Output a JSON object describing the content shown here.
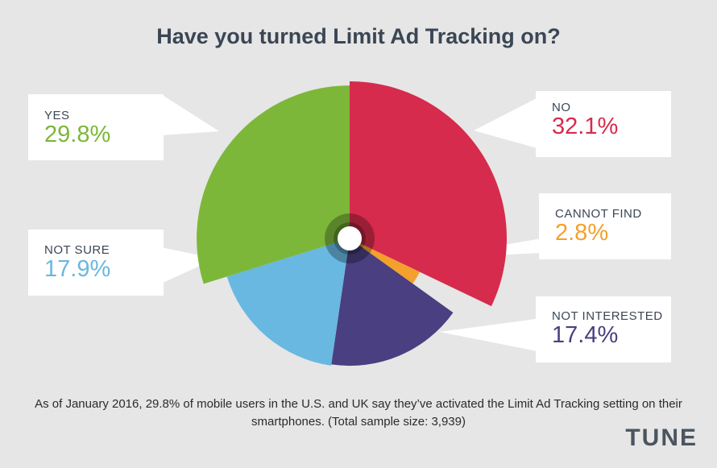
{
  "chart_data": {
    "type": "pie",
    "title": "Have you turned Limit Ad Tracking on?",
    "slices": [
      {
        "name": "NO",
        "label": "32.1%",
        "value": 32.1,
        "color": "#d62b4c"
      },
      {
        "name": "CANNOT FIND",
        "label": "2.8%",
        "value": 2.8,
        "color": "#f4a02c"
      },
      {
        "name": "NOT INTERESTED",
        "label": "17.4%",
        "value": 17.4,
        "color": "#4a3f80"
      },
      {
        "name": "NOT SURE",
        "label": "17.9%",
        "value": 17.9,
        "color": "#68b8e1"
      },
      {
        "name": "YES",
        "label": "29.8%",
        "value": 29.8,
        "color": "#7db73a"
      }
    ]
  },
  "caption": "As of January 2016, 29.8% of mobile users in the U.S. and UK say they’ve activated the Limit Ad Tracking setting on their smartphones. (Total sample size: 3,939)",
  "brand": "TUNE"
}
